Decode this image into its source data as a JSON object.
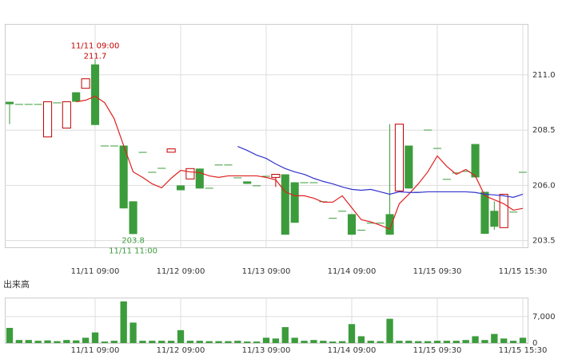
{
  "chart_data": [
    {
      "type": "candlestick",
      "categories": [
        null,
        null,
        null,
        null,
        null,
        null,
        null,
        null,
        null,
        "11/11 09:00",
        null,
        null,
        null,
        null,
        null,
        null,
        null,
        null,
        "11/12 09:00",
        null,
        null,
        null,
        null,
        null,
        null,
        null,
        null,
        "11/13 09:00",
        null,
        null,
        null,
        null,
        null,
        null,
        null,
        null,
        "11/14 09:00",
        null,
        null,
        null,
        null,
        null,
        null,
        null,
        null,
        "11/15 09:30",
        null,
        null,
        null,
        null,
        null,
        null,
        null,
        null,
        "11/15 15:30"
      ],
      "open": [
        209.78,
        209.68,
        209.68,
        209.68,
        208.19,
        209.75,
        208.59,
        210.21,
        210.39,
        211.47,
        207.8,
        207.8,
        207.8,
        205.28,
        207.51,
        206.61,
        206.79,
        207.5,
        206.0,
        206.29,
        206.76,
        205.89,
        206.94,
        206.94,
        206.36,
        206.18,
        206.0,
        206.43,
        206.36,
        206.5,
        206.14,
        206.14,
        206.14,
        205.28,
        204.53,
        204.85,
        204.7,
        203.99,
        204.31,
        204.31,
        204.7,
        205.75,
        207.8,
        205.71,
        208.52,
        207.69,
        206.29,
        206.58,
        206.65,
        207.87,
        205.71,
        204.85,
        204.09,
        204.81,
        206.61
      ],
      "high": [
        209.78,
        209.68,
        209.68,
        209.68,
        209.78,
        209.75,
        209.78,
        210.21,
        210.82,
        211.7,
        207.8,
        207.8,
        207.8,
        205.28,
        207.51,
        206.61,
        206.79,
        207.65,
        206.0,
        206.76,
        206.76,
        205.89,
        206.94,
        206.94,
        206.36,
        206.18,
        206.0,
        206.43,
        206.5,
        206.5,
        206.14,
        206.14,
        206.14,
        205.28,
        204.53,
        204.85,
        204.7,
        203.99,
        204.31,
        204.31,
        208.77,
        208.77,
        207.8,
        205.71,
        208.52,
        207.69,
        206.29,
        206.58,
        206.65,
        207.87,
        205.71,
        205.28,
        205.6,
        204.81,
        206.61
      ],
      "low": [
        208.77,
        209.68,
        209.68,
        209.68,
        208.19,
        209.75,
        208.59,
        209.78,
        210.39,
        208.73,
        207.8,
        207.8,
        204.96,
        203.8,
        207.51,
        206.61,
        206.79,
        207.5,
        205.78,
        206.29,
        205.86,
        205.89,
        206.94,
        206.94,
        206.36,
        206.07,
        206.0,
        206.43,
        205.93,
        203.77,
        204.31,
        206.14,
        206.14,
        205.28,
        204.53,
        204.85,
        203.77,
        203.99,
        204.31,
        204.31,
        203.77,
        205.75,
        205.86,
        205.71,
        208.52,
        207.69,
        206.29,
        206.58,
        206.65,
        206.36,
        203.81,
        203.99,
        204.09,
        204.81,
        206.61
      ],
      "close": [
        209.67,
        209.68,
        209.68,
        209.68,
        209.78,
        209.75,
        209.78,
        209.78,
        210.82,
        208.73,
        207.8,
        207.8,
        204.96,
        203.8,
        207.51,
        206.61,
        206.79,
        207.65,
        205.78,
        206.76,
        205.86,
        205.89,
        206.94,
        206.94,
        206.36,
        206.07,
        206.0,
        206.43,
        206.5,
        203.77,
        204.31,
        206.14,
        206.14,
        205.28,
        204.53,
        204.85,
        203.77,
        203.99,
        204.31,
        204.31,
        203.77,
        208.77,
        205.86,
        205.71,
        208.52,
        207.69,
        206.29,
        206.58,
        206.65,
        206.36,
        203.81,
        204.13,
        205.6,
        204.81,
        206.61
      ],
      "up_color": "#c40000",
      "down_color": "#3c9c3c",
      "series": [
        {
          "color": "#e02020",
          "values": [
            null,
            null,
            null,
            null,
            null,
            null,
            null,
            209.78,
            209.85,
            210.03,
            209.74,
            209.02,
            207.8,
            206.61,
            206.36,
            206.07,
            205.89,
            206.32,
            206.68,
            206.61,
            206.58,
            206.43,
            206.36,
            206.43,
            206.43,
            206.43,
            206.43,
            206.36,
            206.25,
            205.71,
            205.53,
            205.53,
            205.42,
            205.24,
            205.24,
            205.53,
            204.99,
            204.45,
            204.35,
            204.2,
            204.02,
            205.17,
            205.6,
            206.07,
            206.61,
            207.33,
            206.86,
            206.5,
            206.72,
            206.43,
            205.53,
            205.35,
            205.17,
            204.88,
            204.96
          ]
        },
        {
          "color": "#3333cc",
          "values": [
            null,
            null,
            null,
            null,
            null,
            null,
            null,
            null,
            null,
            null,
            null,
            null,
            null,
            null,
            null,
            null,
            null,
            null,
            null,
            null,
            null,
            null,
            null,
            null,
            207.76,
            207.58,
            207.37,
            207.22,
            206.97,
            206.76,
            206.61,
            206.5,
            206.32,
            206.18,
            206.07,
            205.93,
            205.82,
            205.78,
            205.82,
            205.71,
            205.6,
            205.71,
            205.68,
            205.68,
            205.71,
            205.71,
            205.71,
            205.71,
            205.71,
            205.68,
            205.6,
            205.57,
            205.53,
            205.46,
            205.6
          ]
        }
      ],
      "annotations": [
        {
          "label": "11/11 09:00",
          "value": 211.7,
          "index": 9
        },
        {
          "label": "11/11 11:00",
          "value": 203.8,
          "index": 13
        }
      ],
      "ylim": [
        203.2,
        213.3
      ],
      "yticks": [
        203.5,
        {
          "value": 206,
          "label": "206.0"
        },
        208.5,
        {
          "value": 211,
          "label": "211.0"
        }
      ],
      "grid": true
    },
    {
      "type": "bar",
      "title": "出来高",
      "color": "#3c9c3c",
      "categories": [
        null,
        null,
        null,
        null,
        null,
        null,
        null,
        null,
        null,
        "11/11 09:00",
        null,
        null,
        null,
        null,
        null,
        null,
        null,
        null,
        "11/12 09:00",
        null,
        null,
        null,
        null,
        null,
        null,
        null,
        null,
        "11/13 09:00",
        null,
        null,
        null,
        null,
        null,
        null,
        null,
        null,
        "11/14 09:00",
        null,
        null,
        null,
        null,
        null,
        null,
        null,
        null,
        "11/15 09:30",
        null,
        null,
        null,
        null,
        null,
        null,
        null,
        null,
        "11/15 15:30"
      ],
      "values": [
        4000,
        800,
        800,
        600,
        700,
        500,
        800,
        700,
        1400,
        2800,
        400,
        600,
        11000,
        5400,
        600,
        600,
        600,
        600,
        3400,
        600,
        600,
        500,
        500,
        500,
        600,
        400,
        400,
        1400,
        1200,
        4200,
        1400,
        600,
        800,
        600,
        400,
        500,
        5000,
        1800,
        600,
        500,
        6400,
        600,
        600,
        500,
        500,
        600,
        600,
        600,
        800,
        1800,
        800,
        2400,
        1200,
        600,
        1400
      ],
      "ylim": [
        0,
        12000
      ],
      "yticks": [
        0,
        {
          "value": 7000,
          "label": "7,000"
        }
      ],
      "grid": true
    }
  ]
}
